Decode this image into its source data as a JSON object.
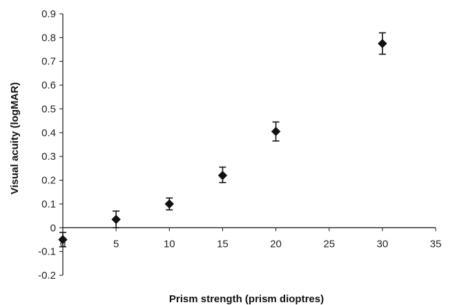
{
  "chart_data": {
    "type": "scatter",
    "title": "",
    "xlabel": "Prism strength (prism dioptres)",
    "ylabel": "Visual acuity (logMAR)",
    "xlim": [
      0,
      35
    ],
    "ylim": [
      -0.2,
      0.9
    ],
    "xticks": [
      0,
      5,
      10,
      15,
      20,
      25,
      30,
      35
    ],
    "yticks": [
      -0.2,
      -0.1,
      0,
      0.1,
      0.2,
      0.3,
      0.4,
      0.5,
      0.6,
      0.7,
      0.8,
      0.9
    ],
    "x_tick_labels": [
      "0",
      "5",
      "10",
      "15",
      "20",
      "25",
      "30",
      "35"
    ],
    "y_tick_labels": [
      "-0.2",
      "-0.1",
      "0",
      "0.1",
      "0.2",
      "0.3",
      "0.4",
      "0.5",
      "0.6",
      "0.7",
      "0.8",
      "0.9"
    ],
    "grid": false,
    "legend": "none",
    "marker": "diamond",
    "color": "#111111",
    "points": [
      {
        "x": 0,
        "y": -0.05,
        "err_low": 0.03,
        "err_high": 0.03
      },
      {
        "x": 5,
        "y": 0.035,
        "err_low": 0.035,
        "err_high": 0.035
      },
      {
        "x": 10,
        "y": 0.1,
        "err_low": 0.025,
        "err_high": 0.025
      },
      {
        "x": 15,
        "y": 0.22,
        "err_low": 0.03,
        "err_high": 0.035
      },
      {
        "x": 20,
        "y": 0.405,
        "err_low": 0.04,
        "err_high": 0.04
      },
      {
        "x": 30,
        "y": 0.775,
        "err_low": 0.045,
        "err_high": 0.045
      }
    ]
  }
}
